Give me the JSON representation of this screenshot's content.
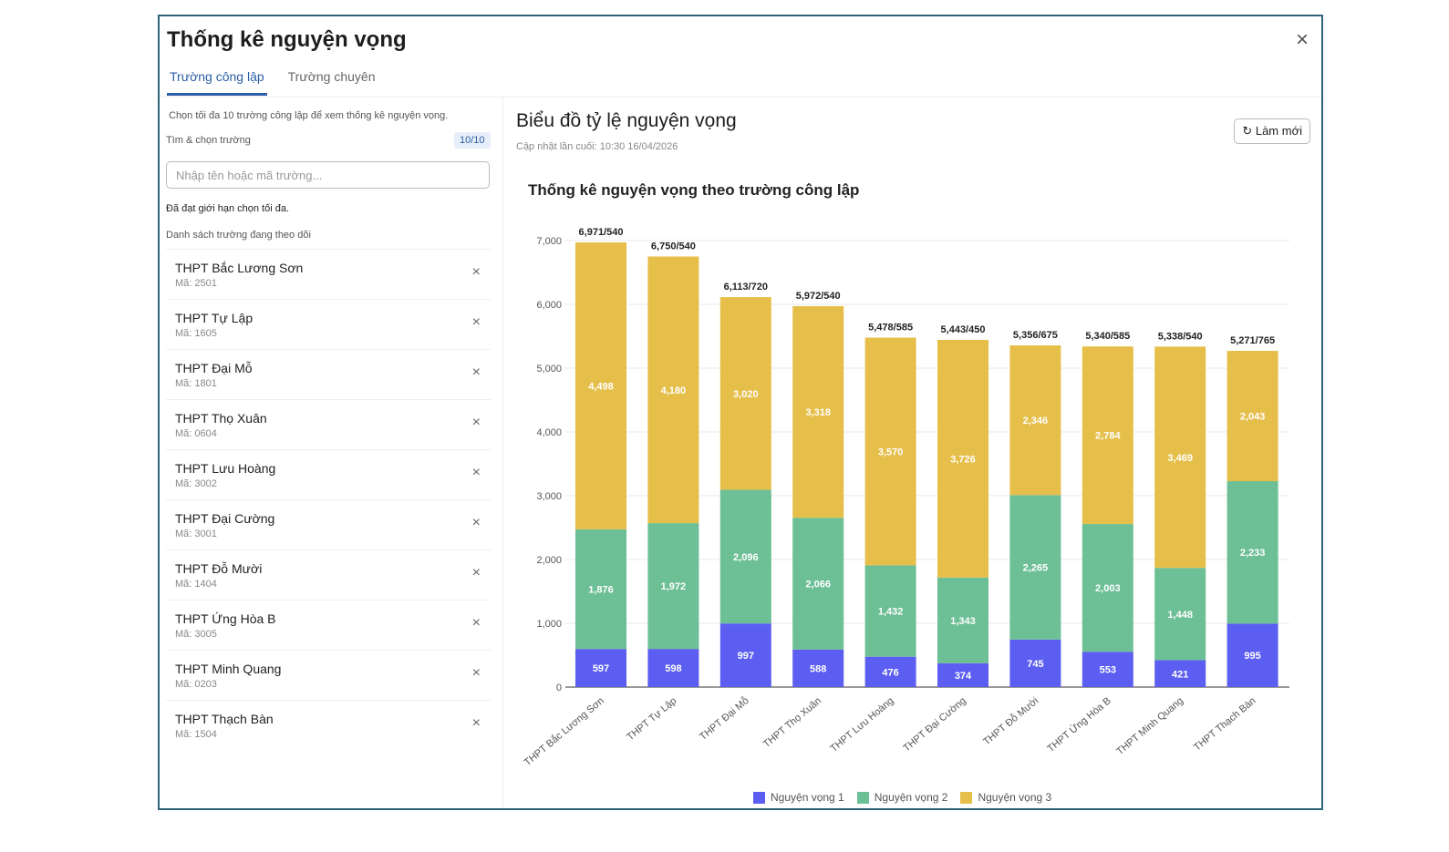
{
  "modal": {
    "title": "Thống kê nguyện vọng",
    "close_icon": "×"
  },
  "tabs": [
    {
      "label": "Trường công lập",
      "active": true
    },
    {
      "label": "Trường chuyên",
      "active": false
    }
  ],
  "left": {
    "hint": "Chọn tối đa 10 trường công lập để xem thống kê nguyện vọng.",
    "search_label": "Tìm & chọn trường",
    "count": "10/10",
    "search_placeholder": "Nhập tên hoặc mã trường...",
    "limit_msg": "Đã đạt giới hạn chọn tối đa.",
    "list_label": "Danh sách trường đang theo dõi",
    "remove_icon": "×",
    "schools": [
      {
        "name": "THPT Bắc Lương Sơn",
        "code": "Mã: 2501"
      },
      {
        "name": "THPT Tự Lập",
        "code": "Mã: 1605"
      },
      {
        "name": "THPT Đại Mỗ",
        "code": "Mã: 1801"
      },
      {
        "name": "THPT Thọ Xuân",
        "code": "Mã: 0604"
      },
      {
        "name": "THPT Lưu Hoàng",
        "code": "Mã: 3002"
      },
      {
        "name": "THPT Đại Cường",
        "code": "Mã: 3001"
      },
      {
        "name": "THPT Đỗ Mười",
        "code": "Mã: 1404"
      },
      {
        "name": "THPT Ứng Hòa B",
        "code": "Mã: 3005"
      },
      {
        "name": "THPT Minh Quang",
        "code": "Mã: 0203"
      },
      {
        "name": "THPT Thạch Bàn",
        "code": "Mã: 1504"
      }
    ]
  },
  "right": {
    "title": "Biểu đồ tỷ lệ nguyện vọng",
    "updated": "Cập nhật lần cuối: 10:30 16/04/2026",
    "refresh_label": "↻ Làm mới"
  },
  "chart_data": {
    "type": "bar",
    "stacked": true,
    "title": "Thống kê nguyện vọng theo trường công lập",
    "categories": [
      "THPT Bắc Lương Sơn",
      "THPT Tự Lập",
      "THPT Đại Mỗ",
      "THPT Thọ Xuân",
      "THPT Lưu Hoàng",
      "THPT Đại Cường",
      "THPT Đỗ Mười",
      "THPT Ứng Hòa B",
      "THPT Minh Quang",
      "THPT Thạch Bàn"
    ],
    "series": [
      {
        "name": "Nguyện vọng 1",
        "color": "#5b5ef0",
        "values": [
          597,
          598,
          997,
          588,
          476,
          374,
          745,
          553,
          421,
          995
        ]
      },
      {
        "name": "Nguyện vọng 2",
        "color": "#6dbf95",
        "values": [
          1876,
          1972,
          2096,
          2066,
          1432,
          1343,
          2265,
          2003,
          1448,
          2233
        ]
      },
      {
        "name": "Nguyện vọng 3",
        "color": "#e6bf4b",
        "values": [
          4498,
          4180,
          3020,
          3318,
          3570,
          3726,
          2346,
          2784,
          3469,
          2043
        ]
      }
    ],
    "total_labels": [
      "6,971/540",
      "6,750/540",
      "6,113/720",
      "5,972/540",
      "5,478/585",
      "5,443/450",
      "5,356/675",
      "5,340/585",
      "5,338/540",
      "5,271/765"
    ],
    "yticks": [
      0,
      1000,
      2000,
      3000,
      4000,
      5000,
      6000,
      7000
    ],
    "ylim": [
      0,
      7000
    ],
    "xlabel": "",
    "ylabel": "",
    "grid": true,
    "legend": "bottom"
  }
}
